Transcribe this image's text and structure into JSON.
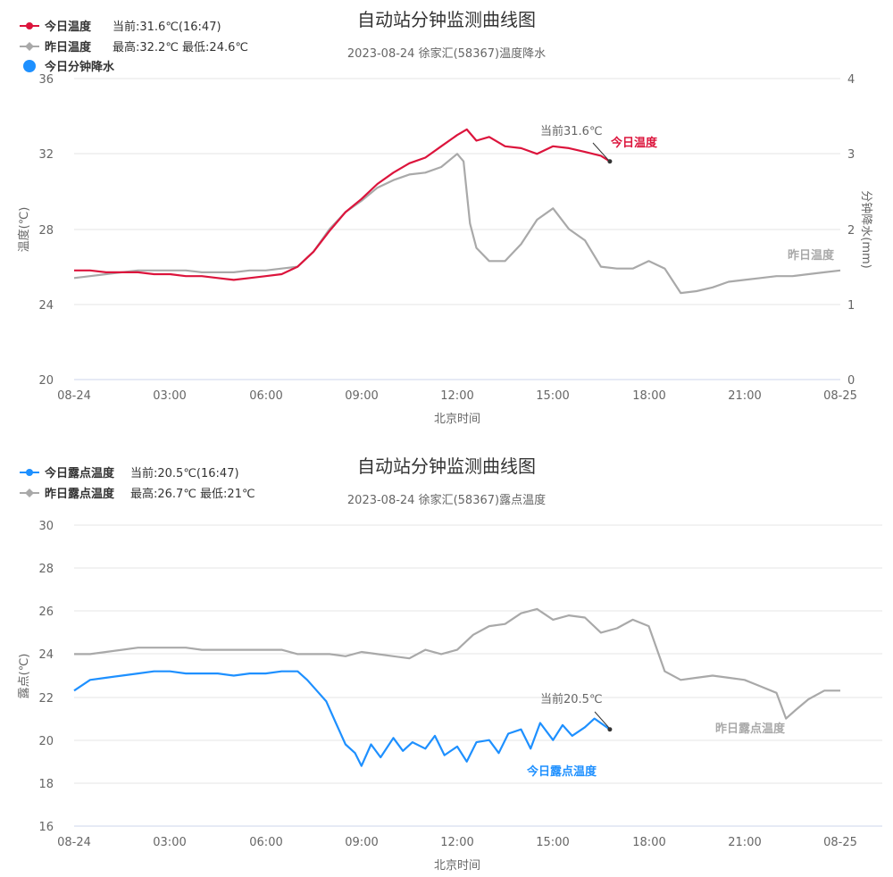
{
  "chart_data": [
    {
      "type": "line",
      "title": "自动站分钟监测曲线图",
      "subtitle": "2023-08-24 徐家汇(58367)温度降水",
      "xlabel": "北京时间",
      "ylabel": "温度(℃)",
      "ylabel_right": "分钟降水(mm)",
      "x_ticks": [
        "08-24",
        "03:00",
        "06:00",
        "09:00",
        "12:00",
        "15:00",
        "18:00",
        "21:00",
        "08-25"
      ],
      "xlim_hours": [
        0,
        24
      ],
      "ylim": [
        20,
        36
      ],
      "y_ticks": [
        "20",
        "24",
        "28",
        "32",
        "36"
      ],
      "ylim_right": [
        0,
        4
      ],
      "y_ticks_right": [
        "0",
        "1",
        "2",
        "3",
        "4"
      ],
      "legend": [
        {
          "name": "今日温度",
          "info": "当前:31.6℃(16:47)",
          "color": "#dc143c",
          "marker": "circle"
        },
        {
          "name": "昨日温度",
          "info": "最高:32.2℃ 最低:24.6℃",
          "color": "#a9a9a9",
          "marker": "diamond"
        },
        {
          "name": "今日分钟降水",
          "info": "",
          "color": "#1e90ff",
          "marker": "circle"
        }
      ],
      "series": [
        {
          "name": "今日温度",
          "color": "#dc143c",
          "end_label": "今日温度",
          "end_annotation": "当前31.6℃",
          "x": [
            0,
            0.5,
            1,
            1.5,
            2,
            2.5,
            3,
            3.5,
            4,
            4.5,
            5,
            5.5,
            6,
            6.5,
            7,
            7.5,
            8,
            8.5,
            9,
            9.5,
            10,
            10.5,
            11,
            11.5,
            12,
            12.3,
            12.6,
            13,
            13.5,
            14,
            14.5,
            15,
            15.5,
            16,
            16.5,
            16.78
          ],
          "values": [
            25.8,
            25.8,
            25.7,
            25.7,
            25.7,
            25.6,
            25.6,
            25.5,
            25.5,
            25.4,
            25.3,
            25.4,
            25.5,
            25.6,
            26.0,
            26.8,
            27.9,
            28.9,
            29.6,
            30.4,
            31.0,
            31.5,
            31.8,
            32.4,
            33.0,
            33.3,
            32.7,
            32.9,
            32.4,
            32.3,
            32.0,
            32.4,
            32.3,
            32.1,
            31.9,
            31.6
          ]
        },
        {
          "name": "昨日温度",
          "color": "#a9a9a9",
          "end_label": "昨日温度",
          "x": [
            0,
            0.5,
            1,
            1.5,
            2,
            2.5,
            3,
            3.5,
            4,
            4.5,
            5,
            5.5,
            6,
            6.5,
            7,
            7.5,
            8,
            8.5,
            9,
            9.5,
            10,
            10.5,
            11,
            11.5,
            12,
            12.2,
            12.4,
            12.6,
            13,
            13.5,
            14,
            14.5,
            15,
            15.5,
            16,
            16.5,
            17,
            17.5,
            18,
            18.5,
            19,
            19.5,
            20,
            20.5,
            21,
            21.5,
            22,
            22.5,
            23,
            23.5,
            24
          ],
          "values": [
            25.4,
            25.5,
            25.6,
            25.7,
            25.8,
            25.8,
            25.8,
            25.8,
            25.7,
            25.7,
            25.7,
            25.8,
            25.8,
            25.9,
            26.0,
            26.8,
            28.0,
            28.9,
            29.5,
            30.2,
            30.6,
            30.9,
            31.0,
            31.3,
            32.0,
            31.6,
            28.3,
            27.0,
            26.3,
            26.3,
            27.2,
            28.5,
            29.1,
            28.0,
            27.4,
            26.0,
            25.9,
            25.9,
            26.3,
            25.9,
            24.6,
            24.7,
            24.9,
            25.2,
            25.3,
            25.4,
            25.5,
            25.5,
            25.6,
            25.7,
            25.8
          ]
        }
      ]
    },
    {
      "type": "line",
      "title": "自动站分钟监测曲线图",
      "subtitle": "2023-08-24 徐家汇(58367)露点温度",
      "xlabel": "北京时间",
      "ylabel": "露点(℃)",
      "x_ticks": [
        "08-24",
        "03:00",
        "06:00",
        "09:00",
        "12:00",
        "15:00",
        "18:00",
        "21:00",
        "08-25"
      ],
      "xlim_hours": [
        0,
        24
      ],
      "ylim": [
        16,
        30
      ],
      "y_ticks": [
        "16",
        "18",
        "20",
        "22",
        "24",
        "26",
        "28",
        "30"
      ],
      "legend": [
        {
          "name": "今日露点温度",
          "info": "当前:20.5℃(16:47)",
          "color": "#1e90ff",
          "marker": "circle"
        },
        {
          "name": "昨日露点温度",
          "info": "最高:26.7℃ 最低:21℃",
          "color": "#a9a9a9",
          "marker": "diamond"
        }
      ],
      "series": [
        {
          "name": "今日露点温度",
          "color": "#1e90ff",
          "end_label": "今日露点温度",
          "end_annotation": "当前20.5℃",
          "x": [
            0,
            0.5,
            1,
            1.5,
            2,
            2.5,
            3,
            3.5,
            4,
            4.5,
            5,
            5.5,
            6,
            6.5,
            7,
            7.3,
            7.6,
            7.9,
            8.2,
            8.5,
            8.8,
            9,
            9.3,
            9.6,
            10,
            10.3,
            10.6,
            11,
            11.3,
            11.6,
            12,
            12.3,
            12.6,
            13,
            13.3,
            13.6,
            14,
            14.3,
            14.6,
            15,
            15.3,
            15.6,
            16,
            16.3,
            16.78
          ],
          "values": [
            22.3,
            22.8,
            22.9,
            23.0,
            23.1,
            23.2,
            23.2,
            23.1,
            23.1,
            23.1,
            23.0,
            23.1,
            23.1,
            23.2,
            23.2,
            22.8,
            22.3,
            21.8,
            20.8,
            19.8,
            19.4,
            18.8,
            19.8,
            19.2,
            20.1,
            19.5,
            19.9,
            19.6,
            20.2,
            19.3,
            19.7,
            19.0,
            19.9,
            20.0,
            19.4,
            20.3,
            20.5,
            19.6,
            20.8,
            20.0,
            20.7,
            20.2,
            20.6,
            21.0,
            20.5
          ]
        },
        {
          "name": "昨日露点温度",
          "color": "#a9a9a9",
          "end_label": "昨日露点温度",
          "x": [
            0,
            0.5,
            1,
            1.5,
            2,
            2.5,
            3,
            3.5,
            4,
            4.5,
            5,
            5.5,
            6,
            6.5,
            7,
            7.5,
            8,
            8.5,
            9,
            9.5,
            10,
            10.5,
            11,
            11.5,
            12,
            12.5,
            13,
            13.5,
            14,
            14.5,
            15,
            15.5,
            16,
            16.5,
            17,
            17.5,
            18,
            18.5,
            19,
            19.5,
            20,
            20.5,
            21,
            21.5,
            22,
            22.3,
            22.6,
            23,
            23.5,
            24
          ],
          "values": [
            24.0,
            24.0,
            24.1,
            24.2,
            24.3,
            24.3,
            24.3,
            24.3,
            24.2,
            24.2,
            24.2,
            24.2,
            24.2,
            24.2,
            24.0,
            24.0,
            24.0,
            23.9,
            24.1,
            24.0,
            23.9,
            23.8,
            24.2,
            24.0,
            24.2,
            24.9,
            25.3,
            25.4,
            25.9,
            26.1,
            25.6,
            25.8,
            25.7,
            25.0,
            25.2,
            25.6,
            25.3,
            23.2,
            22.8,
            22.9,
            23.0,
            22.9,
            22.8,
            22.5,
            22.2,
            21.0,
            21.4,
            21.9,
            22.3,
            22.3
          ]
        }
      ]
    }
  ]
}
